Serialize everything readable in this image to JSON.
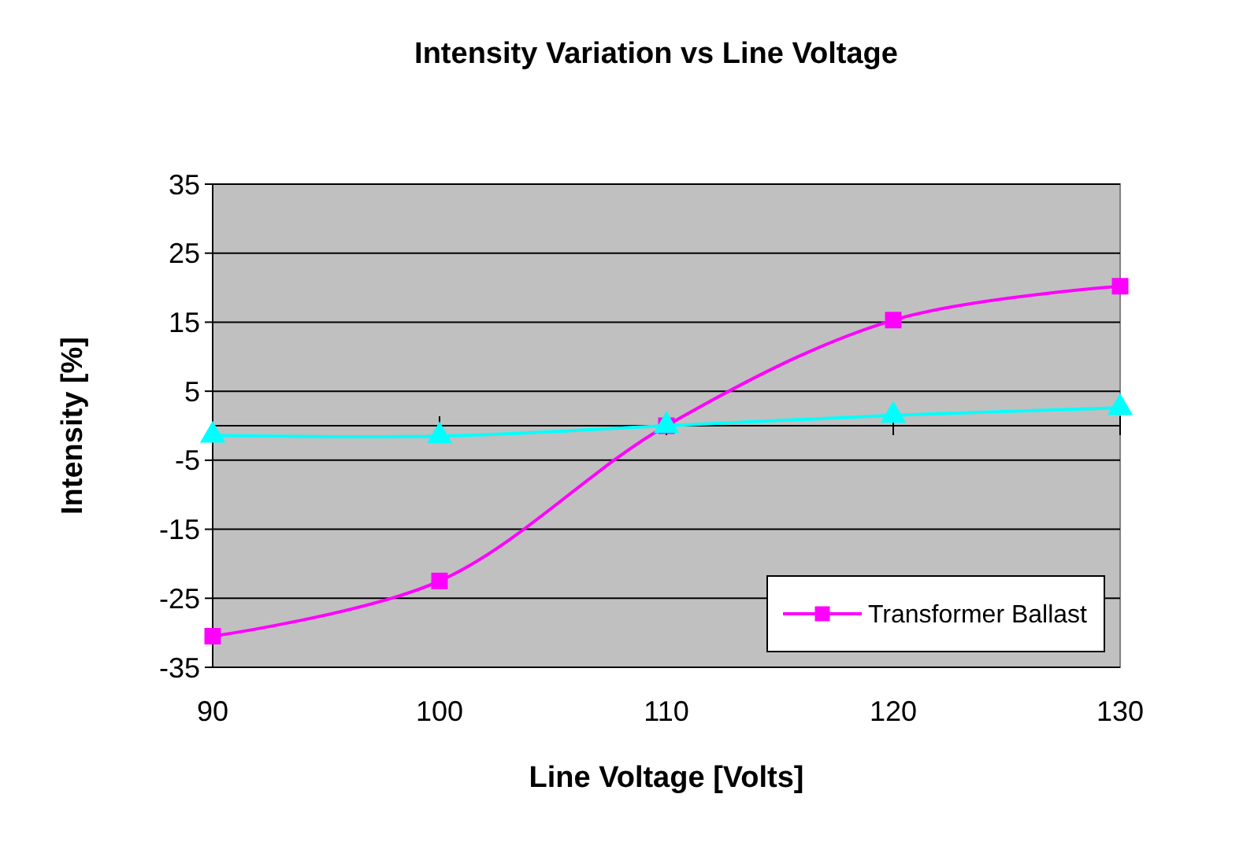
{
  "chart_data": {
    "type": "line",
    "title": "Intensity Variation vs Line Voltage",
    "xlabel": "Line Voltage [Volts]",
    "ylabel": "Intensity [%]",
    "x": [
      90,
      100,
      110,
      120,
      130
    ],
    "series": [
      {
        "name": "Transformer Ballast",
        "color": "#ff00ff",
        "marker": "square",
        "values": [
          -30.5,
          -22.5,
          0,
          15.3,
          20.2
        ]
      },
      {
        "color": "#00ffff",
        "marker": "triangle",
        "values": [
          -1.4,
          -1.5,
          0,
          1.5,
          2.6
        ]
      }
    ],
    "xlim": [
      90,
      130
    ],
    "xticks": [
      90,
      100,
      110,
      120,
      130
    ],
    "ylim": [
      -35,
      35
    ],
    "yticks": [
      -35,
      -25,
      -15,
      -5,
      5,
      15,
      25,
      35
    ],
    "grid": "y",
    "legend": "bottom right"
  }
}
